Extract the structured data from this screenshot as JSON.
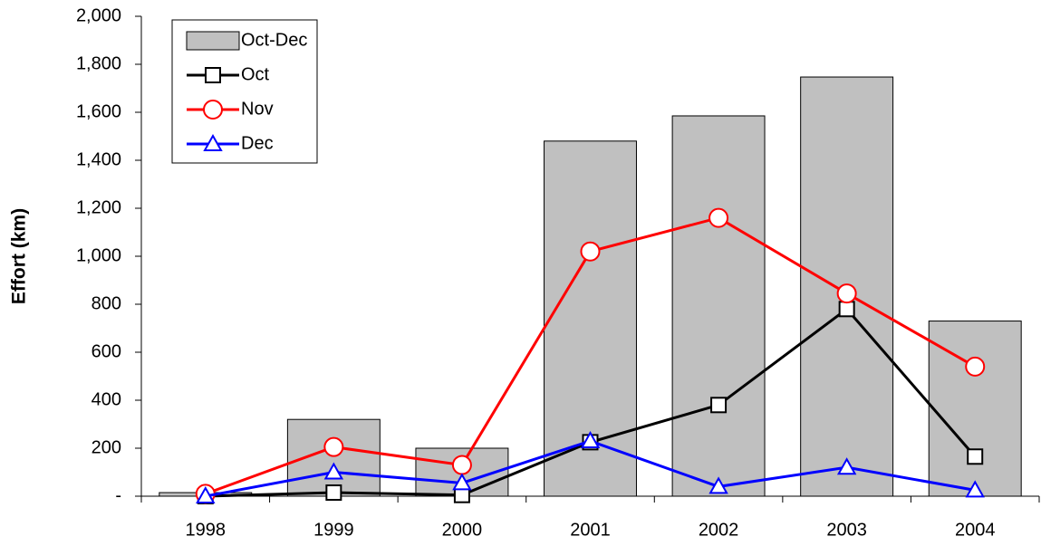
{
  "chart_data": {
    "type": "bar",
    "y_label": "Effort (km)",
    "categories": [
      "1998",
      "1999",
      "2000",
      "2001",
      "2002",
      "2003",
      "2004"
    ],
    "series": [
      {
        "name": "Oct-Dec",
        "kind": "bar",
        "color": "#c0c0c0",
        "values": [
          15,
          320,
          200,
          1480,
          1585,
          1747,
          730
        ]
      },
      {
        "name": "Oct",
        "kind": "line",
        "marker": "square",
        "color": "#000000",
        "values": [
          0,
          15,
          5,
          225,
          380,
          780,
          165
        ]
      },
      {
        "name": "Nov",
        "kind": "line",
        "marker": "circle",
        "color": "#ff0000",
        "values": [
          10,
          205,
          130,
          1020,
          1160,
          845,
          540
        ]
      },
      {
        "name": "Dec",
        "kind": "line",
        "marker": "triangle",
        "color": "#0000ff",
        "values": [
          0,
          100,
          55,
          230,
          40,
          120,
          25
        ]
      }
    ],
    "ylim": [
      0,
      2000
    ],
    "yticks": [
      {
        "value": 0,
        "label": "-"
      },
      200,
      400,
      600,
      800,
      {
        "value": 1000,
        "label": "1,000"
      },
      {
        "value": 1200,
        "label": "1,200"
      },
      {
        "value": 1400,
        "label": "1,400"
      },
      {
        "value": 1600,
        "label": "1,600"
      },
      {
        "value": 1800,
        "label": "1,800"
      },
      {
        "value": 2000,
        "label": "2,000"
      }
    ],
    "grid": false
  }
}
